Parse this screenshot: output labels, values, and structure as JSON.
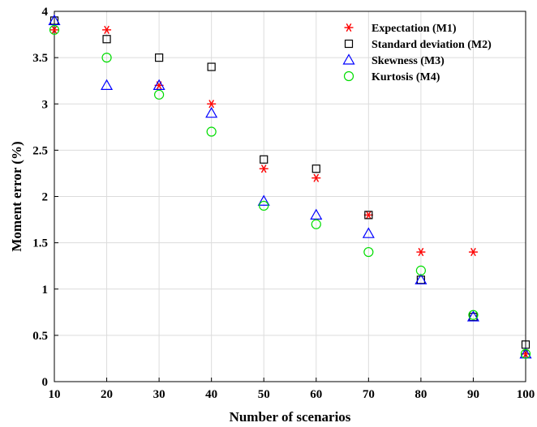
{
  "chart_data": {
    "type": "scatter",
    "xlabel": "Number of scenarios",
    "ylabel": "Moment error (%)",
    "xlim": [
      10,
      100
    ],
    "ylim": [
      0,
      4
    ],
    "xticks": [
      10,
      20,
      30,
      40,
      50,
      60,
      70,
      80,
      90,
      100
    ],
    "yticks": [
      0,
      0.5,
      1,
      1.5,
      2,
      2.5,
      3,
      3.5,
      4
    ],
    "grid": true,
    "legend_position": "top-right",
    "x": [
      10,
      20,
      30,
      40,
      50,
      60,
      70,
      80,
      90,
      100
    ],
    "series": [
      {
        "name": "Expectation (M1)",
        "marker": "asterisk",
        "color": "#ff0000",
        "values": [
          3.8,
          3.8,
          3.2,
          3.0,
          2.3,
          2.2,
          1.8,
          1.4,
          1.4,
          0.3
        ]
      },
      {
        "name": "Standard deviation (M2)",
        "marker": "square",
        "color": "#000000",
        "values": [
          3.9,
          3.7,
          3.5,
          3.4,
          2.4,
          2.3,
          1.8,
          1.1,
          0.7,
          0.4
        ]
      },
      {
        "name": "Skewness (M3)",
        "marker": "triangle",
        "color": "#0000ff",
        "values": [
          3.9,
          3.2,
          3.2,
          2.9,
          1.95,
          1.8,
          1.6,
          1.1,
          0.7,
          0.3
        ]
      },
      {
        "name": "Kurtosis (M4)",
        "marker": "circle",
        "color": "#00dd00",
        "values": [
          3.8,
          3.5,
          3.1,
          2.7,
          1.9,
          1.7,
          1.4,
          1.2,
          0.72,
          0.3
        ]
      }
    ]
  }
}
